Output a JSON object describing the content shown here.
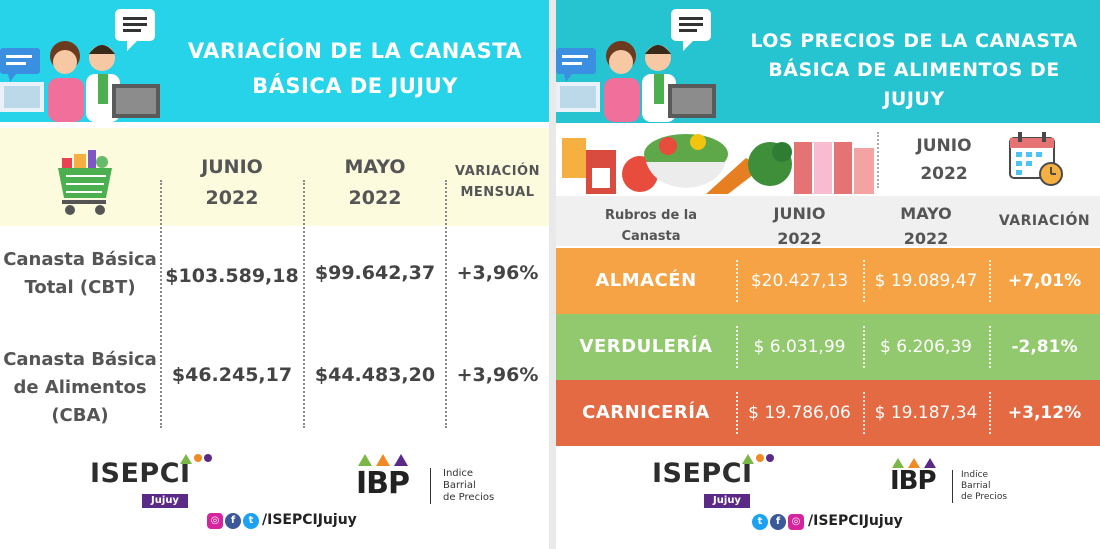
{
  "left": {
    "title_line1": "VARIACÍON DE LA CANASTA",
    "title_line2": "BÁSICA DE JUJUY",
    "columns": [
      {
        "line1": "JUNIO",
        "line2": "2022"
      },
      {
        "line1": "MAYO",
        "line2": "2022"
      },
      {
        "line1": "VARIACIÓN",
        "line2": "MENSUAL"
      }
    ],
    "rows": [
      {
        "label_lines": [
          "Canasta Básica",
          "Total (CBT)"
        ],
        "junio": "$103.589,18",
        "mayo": "$99.642,37",
        "variacion": "+3,96%"
      },
      {
        "label_lines": [
          "Canasta Básica",
          "de Alimentos",
          "(CBA)"
        ],
        "junio": "$46.245,17",
        "mayo": "$44.483,20",
        "variacion": "+3,96%"
      }
    ],
    "logo_isepci": "ISEPCI",
    "logo_isepci_tag": "Jujuy",
    "logo_ibp": "IBP",
    "logo_ibp_desc": [
      "Indice",
      "Barrial",
      "de Precios"
    ],
    "social": "/ISEPCIJujuy",
    "icons": [
      "people-at-computer-icon",
      "chat-bubble-icon",
      "shopping-cart-icon",
      "instagram-icon",
      "facebook-icon",
      "twitter-icon"
    ]
  },
  "right": {
    "title_line1": "LOS PRECIOS DE LA CANASTA",
    "title_line2": "BÁSICA DE ALIMENTOS DE",
    "title_line3": "JUJUY",
    "month_top": {
      "line1": "JUNIO",
      "line2": "2022"
    },
    "columns": {
      "rubros": [
        "Rubros de la",
        "Canasta"
      ],
      "junio": [
        "JUNIO",
        "2022"
      ],
      "mayo": [
        "MAYO",
        "2022"
      ],
      "variacion": "VARIACIÓN"
    },
    "rows": [
      {
        "name": "ALMACÉN",
        "junio": "$20.427,13",
        "mayo": "$ 19.089,47",
        "variacion": "+7,01%",
        "color": "#f5a344"
      },
      {
        "name": "VERDULERÍA",
        "junio": "$ 6.031,99",
        "mayo": "$ 6.206,39",
        "variacion": "-2,81%",
        "color": "#93c96e"
      },
      {
        "name": "CARNICERÍA",
        "junio": "$ 19.786,06",
        "mayo": "$ 19.187,34",
        "variacion": "+3,12%",
        "color": "#e36a43"
      }
    ],
    "logo_isepci": "ISEPCI",
    "logo_isepci_tag": "Jujuy",
    "logo_ibp": "IBP",
    "logo_ibp_desc": [
      "Indice",
      "Barrial",
      "de Precios"
    ],
    "social": "/ISEPCIJujuy",
    "icons": [
      "people-at-computer-icon",
      "chat-bubble-icon",
      "food-groceries-icon",
      "calendar-icon",
      "twitter-icon",
      "facebook-icon",
      "instagram-icon"
    ]
  },
  "colors": {
    "cyan_left": "#27d3e8",
    "cyan_right": "#26c3d0",
    "cream": "#fcfbde",
    "purple": "#5b2a86",
    "green_dot": "#7ab648",
    "orange_dot": "#f08a24"
  }
}
